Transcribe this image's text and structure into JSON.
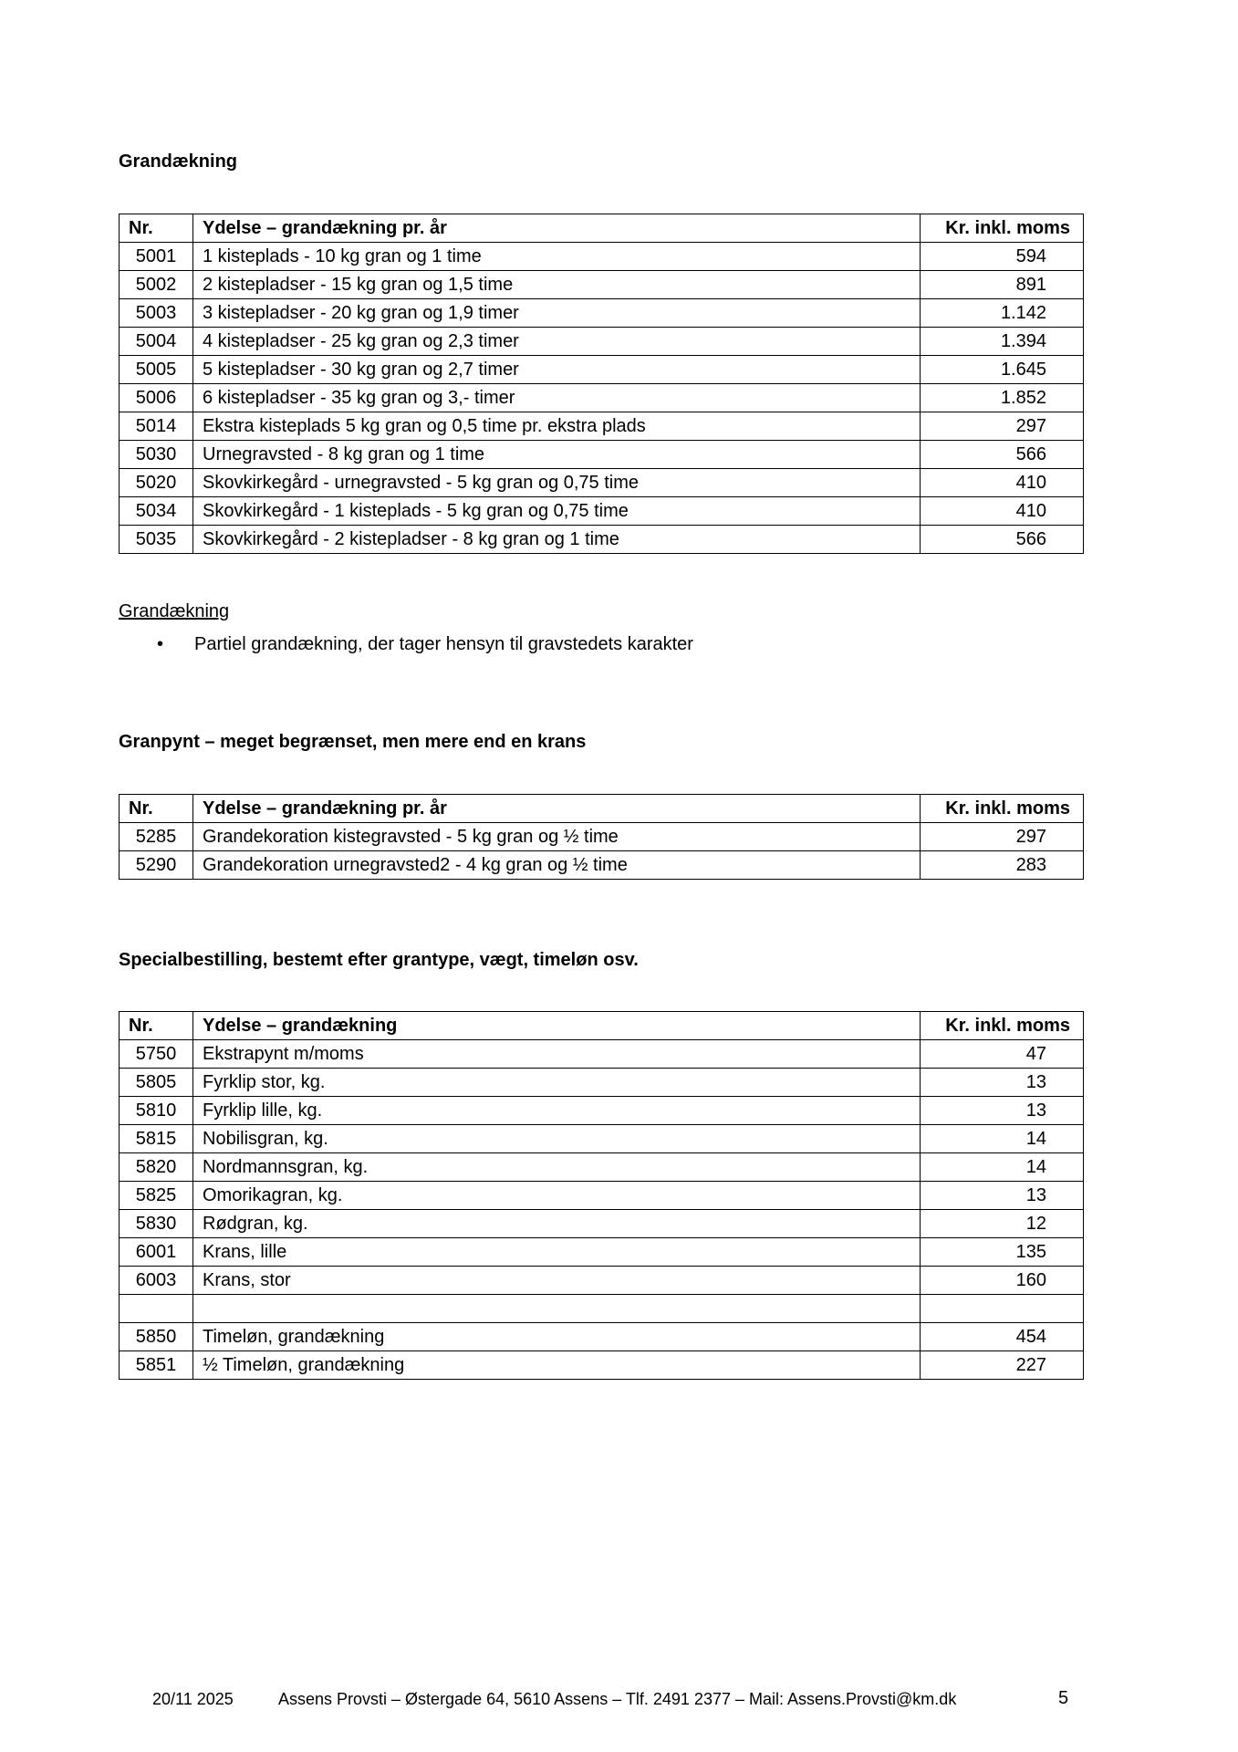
{
  "section1": {
    "heading": "Grandækning",
    "table": {
      "headers": [
        "Nr.",
        "Ydelse – grandækning pr. år",
        "Kr. inkl. moms"
      ],
      "rows": [
        [
          "5001",
          "1 kisteplads - 10 kg gran og 1 time",
          "594"
        ],
        [
          "5002",
          "2 kistepladser - 15 kg gran og 1,5 time",
          "891"
        ],
        [
          "5003",
          "3 kistepladser - 20 kg gran og 1,9 timer",
          "1.142"
        ],
        [
          "5004",
          "4 kistepladser - 25 kg gran og 2,3 timer",
          "1.394"
        ],
        [
          "5005",
          "5 kistepladser - 30 kg gran og 2,7 timer",
          "1.645"
        ],
        [
          "5006",
          "6 kistepladser - 35 kg gran og 3,- timer",
          "1.852"
        ],
        [
          "5014",
          "Ekstra kisteplads 5 kg gran og 0,5 time pr. ekstra plads",
          "297"
        ],
        [
          "5030",
          "Urnegravsted - 8 kg gran og 1 time",
          "566"
        ],
        [
          "5020",
          "Skovkirkegård - urnegravsted - 5 kg gran og 0,75 time",
          "410"
        ],
        [
          "5034",
          "Skovkirkegård - 1 kisteplads - 5 kg gran og 0,75 time",
          "410"
        ],
        [
          "5035",
          "Skovkirkegård - 2 kistepladser - 8 kg gran og 1 time",
          "566"
        ]
      ]
    },
    "subheading": "Grandækning",
    "bullets": [
      "Partiel grandækning, der tager hensyn til gravstedets karakter"
    ]
  },
  "section2": {
    "heading": "Granpynt – meget begrænset, men mere end en krans",
    "table": {
      "headers": [
        "Nr.",
        "Ydelse – grandækning pr. år",
        "Kr. inkl. moms"
      ],
      "rows": [
        [
          "5285",
          "Grandekoration kistegravsted - 5 kg gran og ½ time",
          "297"
        ],
        [
          "5290",
          "Grandekoration urnegravsted2 - 4 kg gran og ½ time",
          "283"
        ]
      ]
    }
  },
  "section3": {
    "heading": "Specialbestilling, bestemt efter grantype, vægt, timeløn osv.",
    "table": {
      "headers": [
        "Nr.",
        "Ydelse – grandækning",
        "Kr. inkl. moms"
      ],
      "rows": [
        [
          "5750",
          "Ekstrapynt m/moms",
          "47"
        ],
        [
          "5805",
          "Fyrklip stor, kg.",
          "13"
        ],
        [
          "5810",
          "Fyrklip lille, kg.",
          "13"
        ],
        [
          "5815",
          "Nobilisgran, kg.",
          "14"
        ],
        [
          "5820",
          "Nordmannsgran, kg.",
          "14"
        ],
        [
          "5825",
          "Omorikagran, kg.",
          "13"
        ],
        [
          "5830",
          "Rødgran, kg.",
          "12"
        ],
        [
          "6001",
          "Krans, lille",
          "135"
        ],
        [
          "6003",
          "Krans, stor",
          "160"
        ],
        [
          "",
          "",
          ""
        ],
        [
          "5850",
          "Timeløn, grandækning",
          "454"
        ],
        [
          "5851",
          "½ Timeløn, grandækning",
          "227"
        ]
      ]
    }
  },
  "footer": {
    "date": "20/11 2025",
    "address": "Assens Provsti – Østergade 64, 5610 Assens – Tlf. 2491 2377 – Mail: Assens.Provsti@km.dk",
    "page": "5"
  }
}
